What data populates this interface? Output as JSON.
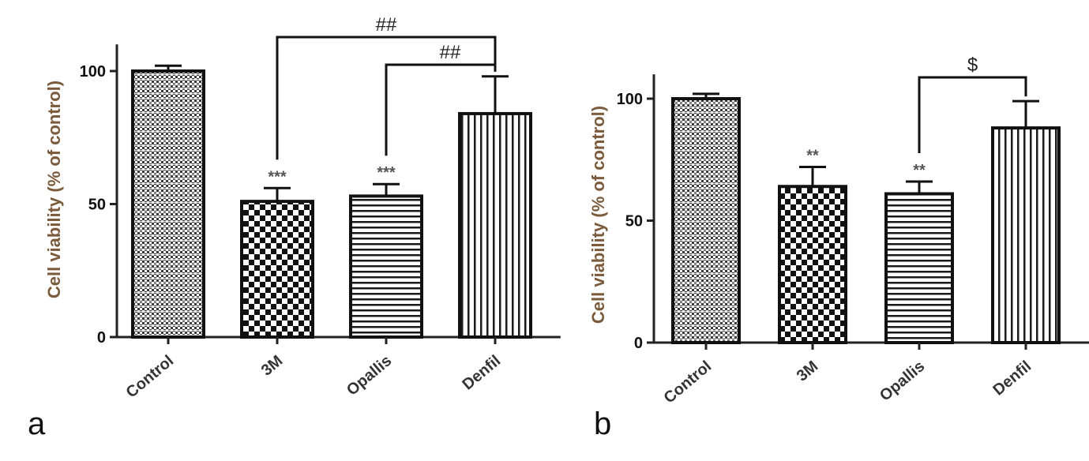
{
  "chart_data": [
    {
      "type": "bar",
      "panel_label": "a",
      "categories": [
        "Control",
        "3M",
        "Opallis",
        "Denfil"
      ],
      "values": [
        100,
        51,
        53,
        84
      ],
      "errors": [
        2,
        5,
        4.5,
        14
      ],
      "significance": [
        "",
        "***",
        "***",
        ""
      ],
      "comparisons": [
        {
          "from": "3M",
          "to": "Denfil",
          "label": "##"
        },
        {
          "from": "Opallis",
          "to": "Denfil",
          "label": "##"
        }
      ],
      "ylabel": "Cell viability (% of control)",
      "yticks": [
        0,
        50,
        100
      ],
      "ylim": [
        0,
        110
      ],
      "xlabel": ""
    },
    {
      "type": "bar",
      "panel_label": "b",
      "categories": [
        "Control",
        "3M",
        "Opallis",
        "Denfil"
      ],
      "values": [
        100,
        64,
        61,
        88
      ],
      "errors": [
        2,
        8,
        5,
        11
      ],
      "significance": [
        "",
        "**",
        "**",
        ""
      ],
      "comparisons": [
        {
          "from": "Opallis",
          "to": "Denfil",
          "label": "$"
        }
      ],
      "ylabel": "Cell viability (% of control)",
      "yticks": [
        0,
        50,
        100
      ],
      "ylim": [
        0,
        110
      ],
      "xlabel": ""
    }
  ]
}
